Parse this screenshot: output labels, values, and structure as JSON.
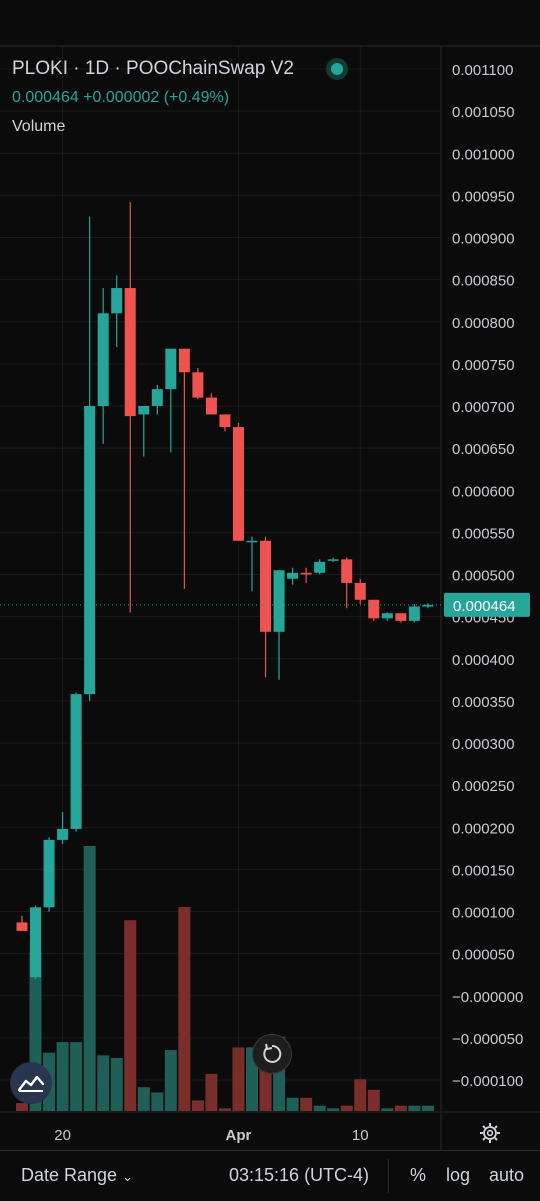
{
  "header": {
    "symbol": "PLOKI",
    "interval": "1D",
    "exchange": "POOChainSwap V2",
    "pair_line": "PLOKI · 1D · POOChainSwap V2",
    "price_line": "0.000464  +0.000002 (+0.49%)",
    "volume_label": "Volume"
  },
  "bottom_bar": {
    "date_range": "Date Range",
    "time": "03:15:16 (UTC-4)",
    "percent": "%",
    "log": "log",
    "auto": "auto"
  },
  "colors": {
    "up": "#26a69a",
    "down": "#ef5350",
    "up_volume": "#1f5f57",
    "down_volume": "#7a2e2b"
  },
  "chart_data": {
    "type": "candlestick",
    "current_price": 0.000464,
    "current_price_label": "0.000464",
    "y_range": [
      -0.000135,
      0.001115
    ],
    "y_ticks": [
      "0.001100",
      "0.001050",
      "0.001000",
      "0.000950",
      "0.000900",
      "0.000850",
      "0.000800",
      "0.000750",
      "0.000700",
      "0.000650",
      "0.000600",
      "0.000550",
      "0.000500",
      "0.000450",
      "0.000400",
      "0.000350",
      "0.000300",
      "0.000250",
      "0.000200",
      "0.000150",
      "0.000100",
      "0.000050",
      "−0.000000",
      "−0.000050",
      "−0.000100"
    ],
    "y_tick_values": [
      0.0011,
      0.00105,
      0.001,
      0.00095,
      0.0009,
      0.00085,
      0.0008,
      0.00075,
      0.0007,
      0.00065,
      0.0006,
      0.00055,
      0.0005,
      0.00045,
      0.0004,
      0.00035,
      0.0003,
      0.00025,
      0.0002,
      0.00015,
      0.0001,
      5e-05,
      0,
      -5e-05,
      -0.0001
    ],
    "x_ticks": [
      {
        "label": "20",
        "index": 3
      },
      {
        "label": "Apr",
        "index": 16
      },
      {
        "label": "10",
        "index": 25
      }
    ],
    "volume_max": 1.0,
    "candles": [
      {
        "o": 8.7e-05,
        "h": 9.5e-05,
        "l": 7.7e-05,
        "c": 7.7e-05,
        "v": 0.03
      },
      {
        "o": 2.2e-05,
        "h": 0.000107,
        "l": 2e-05,
        "c": 0.000105,
        "v": 0.6
      },
      {
        "o": 0.000105,
        "h": 0.000188,
        "l": 0.0001,
        "c": 0.000185,
        "v": 0.22
      },
      {
        "o": 0.000185,
        "h": 0.000218,
        "l": 0.00018,
        "c": 0.000198,
        "v": 0.26
      },
      {
        "o": 0.000198,
        "h": 0.00036,
        "l": 0.000195,
        "c": 0.000358,
        "v": 0.26
      },
      {
        "o": 0.000358,
        "h": 0.000925,
        "l": 0.00035,
        "c": 0.0007,
        "v": 1.0
      },
      {
        "o": 0.0007,
        "h": 0.00084,
        "l": 0.000655,
        "c": 0.00081,
        "v": 0.21
      },
      {
        "o": 0.00081,
        "h": 0.000855,
        "l": 0.00077,
        "c": 0.00084,
        "v": 0.2
      },
      {
        "o": 0.00084,
        "h": 0.000942,
        "l": 0.000455,
        "c": 0.000688,
        "v": 0.72
      },
      {
        "o": 0.00069,
        "h": 0.0007,
        "l": 0.00064,
        "c": 0.0007,
        "v": 0.09
      },
      {
        "o": 0.0007,
        "h": 0.000725,
        "l": 0.00069,
        "c": 0.00072,
        "v": 0.07
      },
      {
        "o": 0.00072,
        "h": 0.000768,
        "l": 0.000645,
        "c": 0.000768,
        "v": 0.23
      },
      {
        "o": 0.000768,
        "h": 0.000768,
        "l": 0.000483,
        "c": 0.00074,
        "v": 0.77
      },
      {
        "o": 0.00074,
        "h": 0.000745,
        "l": 0.000708,
        "c": 0.00071,
        "v": 0.04
      },
      {
        "o": 0.00071,
        "h": 0.000715,
        "l": 0.00069,
        "c": 0.00069,
        "v": 0.14
      },
      {
        "o": 0.00069,
        "h": 0.00069,
        "l": 0.00067,
        "c": 0.000675,
        "v": 0.01
      },
      {
        "o": 0.000675,
        "h": 0.00068,
        "l": 0.00054,
        "c": 0.00054,
        "v": 0.24
      },
      {
        "o": 0.00054,
        "h": 0.000545,
        "l": 0.00048,
        "c": 0.00054,
        "v": 0.24
      },
      {
        "o": 0.00054,
        "h": 0.000545,
        "l": 0.000378,
        "c": 0.000432,
        "v": 0.25
      },
      {
        "o": 0.000432,
        "h": 0.000505,
        "l": 0.000375,
        "c": 0.000505,
        "v": 0.28
      },
      {
        "o": 0.000495,
        "h": 0.000508,
        "l": 0.000488,
        "c": 0.000502,
        "v": 0.05
      },
      {
        "o": 0.000502,
        "h": 0.000508,
        "l": 0.00049,
        "c": 0.0005,
        "v": 0.05
      },
      {
        "o": 0.000502,
        "h": 0.000518,
        "l": 0.0005,
        "c": 0.000515,
        "v": 0.02
      },
      {
        "o": 0.000518,
        "h": 0.00052,
        "l": 0.000515,
        "c": 0.000518,
        "v": 0.01
      },
      {
        "o": 0.000518,
        "h": 0.00052,
        "l": 0.00046,
        "c": 0.00049,
        "v": 0.02
      },
      {
        "o": 0.00049,
        "h": 0.000495,
        "l": 0.000465,
        "c": 0.00047,
        "v": 0.12
      },
      {
        "o": 0.00047,
        "h": 0.00047,
        "l": 0.000445,
        "c": 0.000448,
        "v": 0.08
      },
      {
        "o": 0.000448,
        "h": 0.000455,
        "l": 0.000445,
        "c": 0.000454,
        "v": 0.01
      },
      {
        "o": 0.000454,
        "h": 0.000454,
        "l": 0.000443,
        "c": 0.000445,
        "v": 0.02
      },
      {
        "o": 0.000445,
        "h": 0.000465,
        "l": 0.000443,
        "c": 0.000462,
        "v": 0.02
      },
      {
        "o": 0.000462,
        "h": 0.000466,
        "l": 0.00046,
        "c": 0.000464,
        "v": 0.02
      }
    ]
  }
}
